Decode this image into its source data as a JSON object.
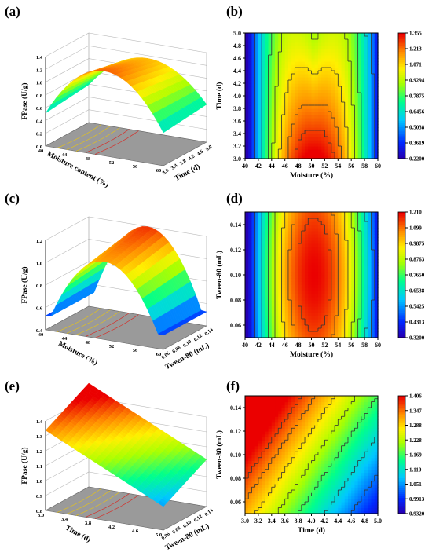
{
  "panels": [
    {
      "id": "a",
      "label": "(a)"
    },
    {
      "id": "b",
      "label": "(b)"
    },
    {
      "id": "c",
      "label": "(c)"
    },
    {
      "id": "d",
      "label": "(d)"
    },
    {
      "id": "e",
      "label": "(e)"
    },
    {
      "id": "f",
      "label": "(f)"
    }
  ],
  "chart_data": [
    {
      "panel": "a",
      "type": "surface3d",
      "zlabel": "FPase (U/g)",
      "zticks": [
        "0.0",
        "0.2",
        "0.4",
        "0.6",
        "0.8",
        "1.0",
        "1.2",
        "1.4"
      ],
      "zlim": [
        0,
        1.4
      ],
      "xlabel": "Moisture content (%)",
      "xticks": [
        "40",
        "44",
        "48",
        "52",
        "56",
        "60"
      ],
      "ylabel": "Time (d)",
      "yticks": [
        "3.0",
        "3.4",
        "3.8",
        "4.2",
        "4.6",
        "5.0"
      ],
      "note": "FPase surface over moisture content and time, peaks near 50% moisture and 3 d"
    },
    {
      "panel": "b",
      "type": "contour",
      "xlabel": "Moisture (%)",
      "ylabel": "Time (d)",
      "xticks": [
        "40",
        "42",
        "44",
        "46",
        "48",
        "50",
        "52",
        "54",
        "56",
        "58",
        "60"
      ],
      "yticks": [
        "3.0",
        "3.2",
        "3.4",
        "3.6",
        "3.8",
        "4.0",
        "4.2",
        "4.4",
        "4.6",
        "4.8",
        "5.0"
      ],
      "xlim": [
        40,
        60
      ],
      "ylim": [
        3.0,
        5.0
      ],
      "colorbar": [
        "1.355",
        "1.213",
        "1.071",
        "0.9294",
        "0.7875",
        "0.6456",
        "0.5038",
        "0.3619",
        "0.2200"
      ],
      "zlim": [
        0.22,
        1.355
      ]
    },
    {
      "panel": "c",
      "type": "surface3d",
      "zlabel": "FPase (U/g)",
      "zticks": [
        "0.4",
        "0.6",
        "0.8",
        "1.0",
        "1.2"
      ],
      "zlim": [
        0.3,
        1.21
      ],
      "xlabel": "Moisture (%)",
      "xticks": [
        "40",
        "44",
        "48",
        "52",
        "56",
        "60"
      ],
      "ylabel": "Tween-80 (mL)",
      "yticks": [
        "0.06",
        "0.08",
        "0.10",
        "0.12",
        "0.14"
      ],
      "note": "FPase surface over moisture and Tween-80, ridge near 50% moisture"
    },
    {
      "panel": "d",
      "type": "contour",
      "xlabel": "Moisture (%)",
      "ylabel": "Tween-80 (mL)",
      "xticks": [
        "40",
        "42",
        "44",
        "46",
        "48",
        "50",
        "52",
        "54",
        "56",
        "58",
        "60"
      ],
      "yticks": [
        "0.06",
        "0.08",
        "0.10",
        "0.12",
        "0.14"
      ],
      "xlim": [
        40,
        60
      ],
      "ylim": [
        0.05,
        0.15
      ],
      "colorbar": [
        "1.210",
        "1.099",
        "0.9875",
        "0.8763",
        "0.7650",
        "0.6538",
        "0.5425",
        "0.4313",
        "0.3200"
      ],
      "zlim": [
        0.32,
        1.21
      ]
    },
    {
      "panel": "e",
      "type": "surface3d",
      "zlabel": "FPase (U/g)",
      "zticks": [
        "0.8",
        "0.9",
        "1.0",
        "1.1",
        "1.2",
        "1.3",
        "1.4"
      ],
      "zlim": [
        0.8,
        1.45
      ],
      "xlabel": "Time (d)",
      "xticks": [
        "3.0",
        "3.4",
        "3.8",
        "4.2",
        "4.6",
        "5.0"
      ],
      "ylabel": "Tween-80 (mL)",
      "yticks": [
        "0.06",
        "0.08",
        "0.10",
        "0.12",
        "0.14"
      ],
      "note": "FPase surface over time and Tween-80, highest at 3 d and 0.14 mL"
    },
    {
      "panel": "f",
      "type": "contour",
      "xlabel": "Time (d)",
      "ylabel": "Tween-80 (mL)",
      "xticks": [
        "3.0",
        "3.2",
        "3.4",
        "3.6",
        "3.8",
        "4.0",
        "4.2",
        "4.4",
        "4.6",
        "4.8",
        "5.0"
      ],
      "yticks": [
        "0.06",
        "0.08",
        "0.10",
        "0.12",
        "0.14"
      ],
      "xlim": [
        3.0,
        5.0
      ],
      "ylim": [
        0.05,
        0.15
      ],
      "colorbar": [
        "1.406",
        "1.347",
        "1.288",
        "1.228",
        "1.169",
        "1.110",
        "1.051",
        "0.9913",
        "0.9320"
      ],
      "zlim": [
        0.932,
        1.406
      ]
    }
  ]
}
